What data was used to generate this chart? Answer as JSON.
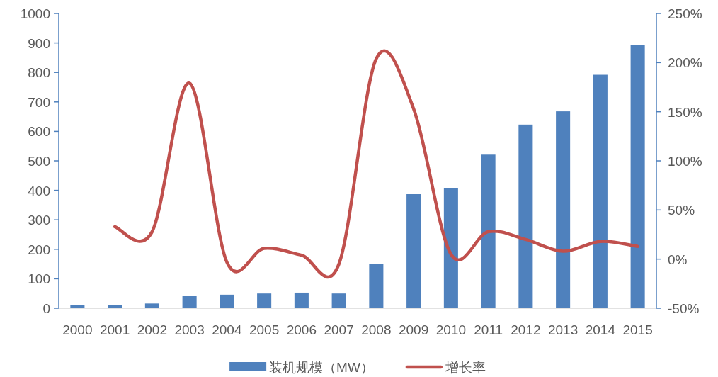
{
  "chart_data": {
    "type": "bar",
    "categories": [
      "2000",
      "2001",
      "2002",
      "2003",
      "2004",
      "2005",
      "2006",
      "2007",
      "2008",
      "2009",
      "2010",
      "2011",
      "2012",
      "2013",
      "2014",
      "2015"
    ],
    "series": [
      {
        "name": "装机规模（MW）",
        "color": "#4f81bd",
        "values": [
          10,
          12,
          16,
          43,
          46,
          50,
          53,
          50,
          151,
          387,
          407,
          521,
          623,
          668,
          792,
          892
        ]
      },
      {
        "name": "增长率",
        "color": "#c0504d",
        "type": "line",
        "axis": "y2",
        "values": [
          null,
          33,
          28,
          179,
          -3,
          11,
          4,
          -5,
          204,
          153,
          5,
          28,
          20,
          8,
          18,
          13
        ]
      }
    ],
    "ylim": [
      0,
      1000
    ],
    "yticks": [
      0,
      100,
      200,
      300,
      400,
      500,
      600,
      700,
      800,
      900,
      1000
    ],
    "y2lim": [
      -50,
      250
    ],
    "y2ticks": [
      {
        "value": -50,
        "label": "-50%"
      },
      {
        "value": 0,
        "label": "0%"
      },
      {
        "value": 50,
        "label": "50%"
      },
      {
        "value": 100,
        "label": "100%"
      },
      {
        "value": 150,
        "label": "150%"
      },
      {
        "value": 200,
        "label": "200%"
      },
      {
        "value": 250,
        "label": "250%"
      }
    ],
    "grid": false,
    "legend": "bottom",
    "line_style": "solid"
  }
}
